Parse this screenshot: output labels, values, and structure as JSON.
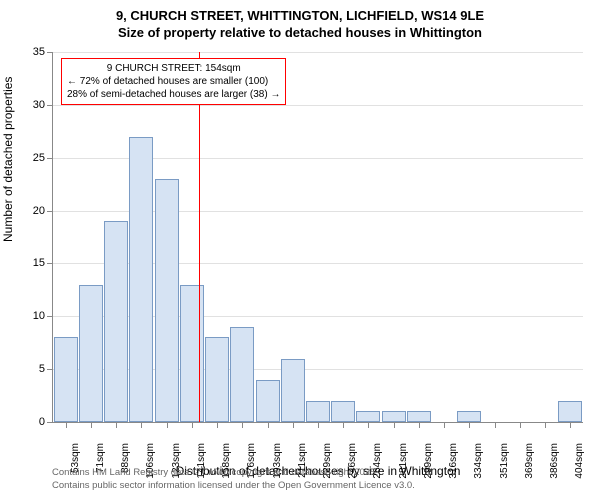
{
  "title_line1": "9, CHURCH STREET, WHITTINGTON, LICHFIELD, WS14 9LE",
  "title_line2": "Size of property relative to detached houses in Whittington",
  "chart": {
    "type": "histogram",
    "y_axis_title": "Number of detached properties",
    "x_axis_title": "Distribution of detached houses by size in Whittington",
    "ylim": [
      0,
      35
    ],
    "ytick_step": 5,
    "x_labels": [
      "53sqm",
      "71sqm",
      "88sqm",
      "106sqm",
      "123sqm",
      "141sqm",
      "158sqm",
      "176sqm",
      "193sqm",
      "211sqm",
      "229sqm",
      "246sqm",
      "264sqm",
      "281sqm",
      "299sqm",
      "316sqm",
      "334sqm",
      "351sqm",
      "369sqm",
      "386sqm",
      "404sqm"
    ],
    "values": [
      8,
      13,
      19,
      27,
      23,
      13,
      8,
      9,
      4,
      6,
      2,
      2,
      1,
      1,
      1,
      0,
      1,
      0,
      0,
      0,
      2
    ],
    "bar_color": "#d6e3f3",
    "bar_border_color": "#7a9bc4",
    "background_color": "#ffffff",
    "grid_color": "#888888",
    "bar_width_ratio": 0.95,
    "reference_line": {
      "x_index": 5.77,
      "color": "#ff0000"
    },
    "annotation": {
      "border_color": "#ff0000",
      "line1": "9 CHURCH STREET: 154sqm",
      "line2": "← 72% of detached houses are smaller (100)",
      "line3": "28% of semi-detached houses are larger (38) →"
    }
  },
  "footer_line1": "Contains HM Land Registry data © Crown copyright and database right 2025.",
  "footer_line2": "Contains public sector information licensed under the Open Government Licence v3.0."
}
